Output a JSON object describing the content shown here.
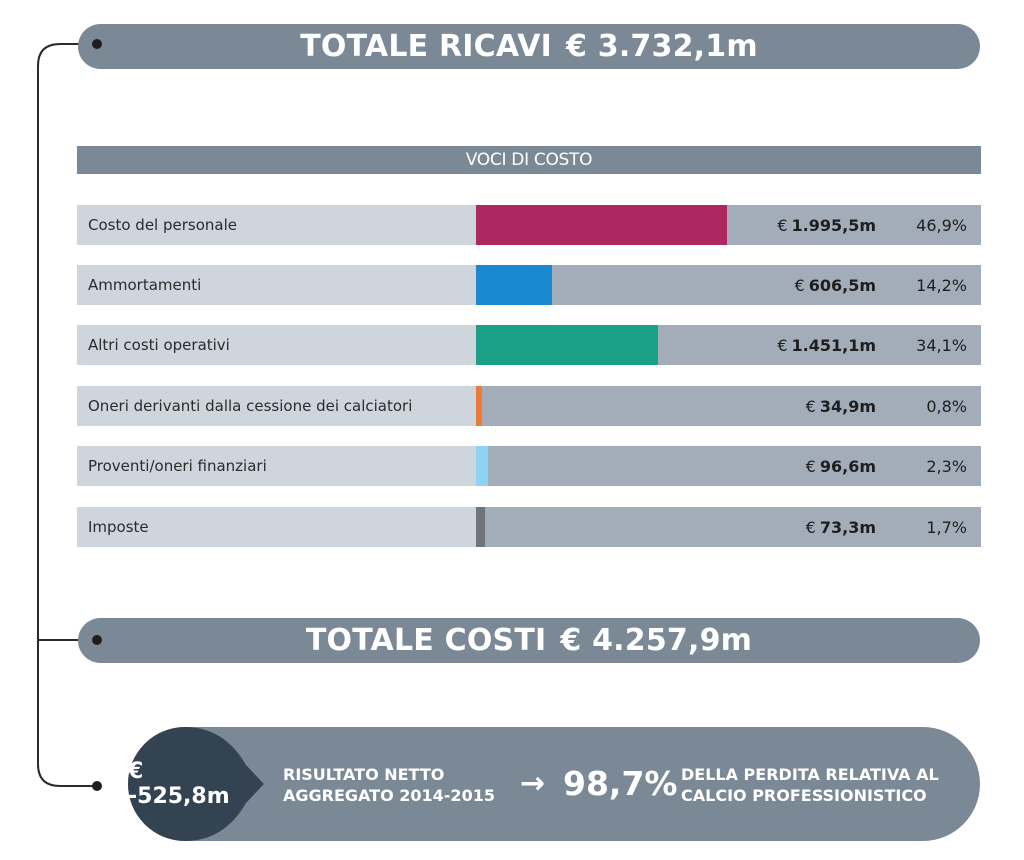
{
  "totals": {
    "ricavi_label": "TOTALE RICAVI",
    "ricavi_value": "€ 3.732,1m",
    "costi_label": "TOTALE COSTI",
    "costi_value": "€ 4.257,9m"
  },
  "result": {
    "net_value": "€ -525,8m",
    "caption_line1": "RISULTATO NETTO",
    "caption_line2": "AGGREGATO 2014-2015",
    "arrow": "→",
    "percent": "98,7%",
    "desc_line1": "DELLA PERDITA RELATIVA AL",
    "desc_line2": "CALCIO PROFESSIONISTICO"
  },
  "colors": {
    "pill": "#7b8997",
    "result_circle": "#344352",
    "track": "#a3adb9",
    "label_bg": "#cfd5dd"
  },
  "chart_data": {
    "type": "bar",
    "title": "VOCI DI COSTO",
    "orientation": "horizontal",
    "unit": "€ m",
    "total": 4257.9,
    "categories": [
      "Costo del personale",
      "Ammortamenti",
      "Altri costi operativi",
      "Oneri derivanti dalla cessione dei calciatori",
      "Proventi/oneri finanziari",
      "Imposte"
    ],
    "values": [
      1995.5,
      606.5,
      1451.1,
      34.9,
      96.6,
      73.3
    ],
    "percent_share": [
      46.9,
      14.2,
      34.1,
      0.8,
      2.3,
      1.7
    ],
    "value_labels": [
      "1.995,5m",
      "606,5m",
      "1.451,1m",
      "34,9m",
      "96,6m",
      "73,3m"
    ],
    "percent_labels": [
      "46,9%",
      "14,2%",
      "34,1%",
      "0,8%",
      "2,3%",
      "1,7%"
    ],
    "currency_symbol": "€",
    "bar_colors": [
      "#ad2760",
      "#1b89d2",
      "#1aa086",
      "#ee7a3a",
      "#8dd3f3",
      "#6f747b"
    ]
  }
}
